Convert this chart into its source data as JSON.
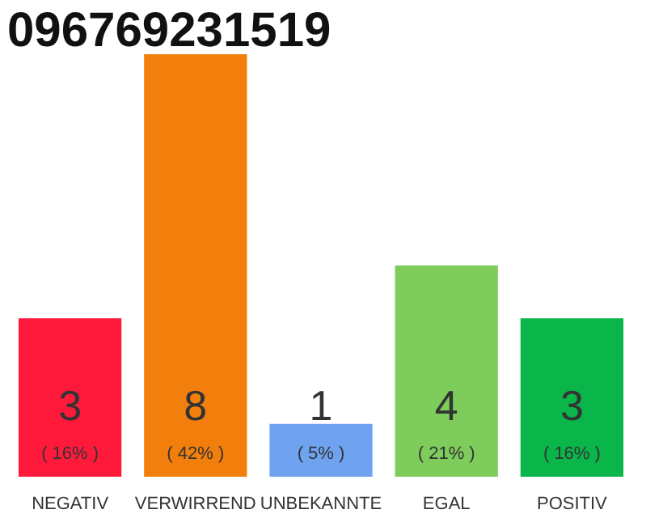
{
  "chart_data": {
    "type": "bar",
    "title": "096769231519",
    "categories": [
      "NEGATIV",
      "VERWIRREND",
      "UNBEKANNTE",
      "EGAL",
      "POSITIV"
    ],
    "values": [
      3,
      8,
      1,
      4,
      3
    ],
    "colors": [
      "#ff1a3c",
      "#f27f0c",
      "#6fa3f0",
      "#7dcc5c",
      "#0ab54a"
    ],
    "data_labels": true,
    "annotations": [
      "( 16% )",
      "( 42% )",
      "( 5% )",
      "( 21% )",
      "( 16% )"
    ],
    "grid": false
  }
}
